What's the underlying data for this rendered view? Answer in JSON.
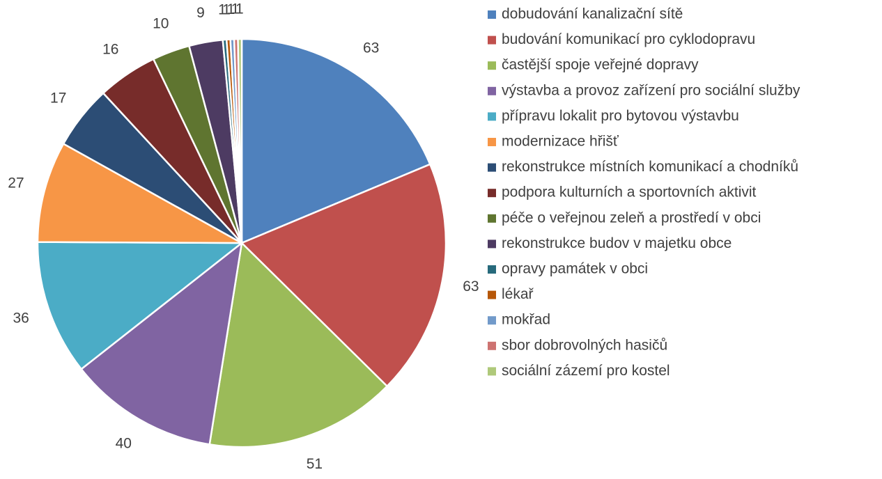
{
  "chart_data": {
    "type": "pie",
    "categories": [
      "dobudování kanalizační sítě",
      "budování komunikací pro cyklodopravu",
      "častější spoje veřejné dopravy",
      "výstavba a provoz zařízení pro sociální služby",
      "přípravu lokalit pro bytovou výstavbu",
      "modernizace hřišť",
      "rekonstrukce místních komunikací a chodníků",
      "podpora kulturních a sportovních aktivit",
      "péče o veřejnou zeleň a prostředí v obci",
      "rekonstrukce budov v majetku obce",
      "opravy památek v obci",
      "lékař",
      "mokřad",
      "sbor dobrovolných hasičů",
      "sociální zázemí pro kostel"
    ],
    "values": [
      63,
      63,
      51,
      40,
      36,
      27,
      17,
      16,
      10,
      9,
      1,
      1,
      1,
      1,
      1
    ],
    "colors": [
      "#4f81bd",
      "#c0504d",
      "#9bbb59",
      "#8064a2",
      "#4bacc6",
      "#f79646",
      "#2c4d75",
      "#772c2a",
      "#5f7530",
      "#4d3b62",
      "#276a7c",
      "#b65708",
      "#729aca",
      "#cd7371",
      "#afc97a"
    ],
    "legend": "right"
  }
}
